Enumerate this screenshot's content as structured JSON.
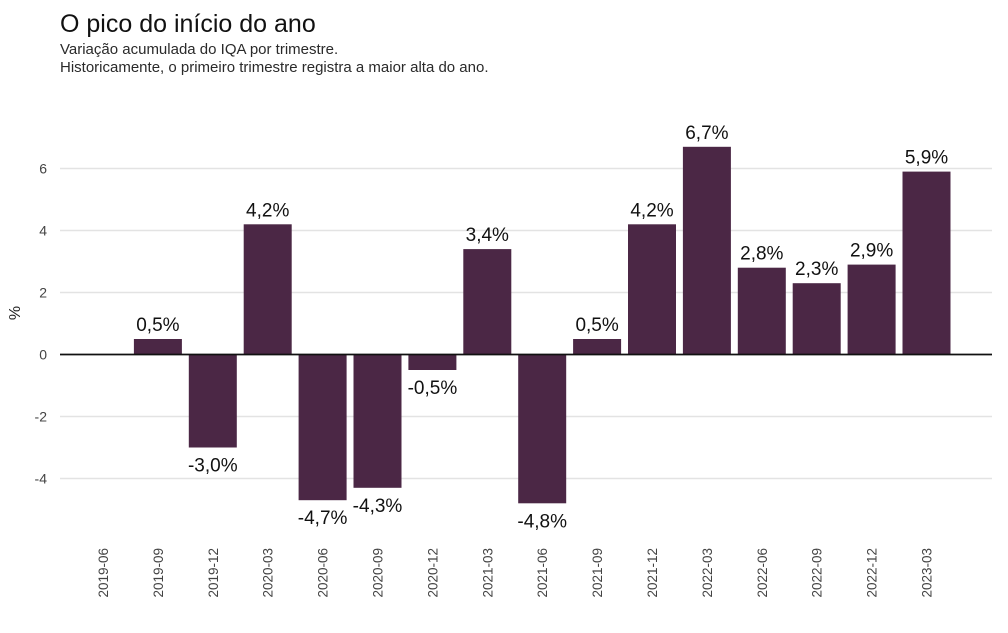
{
  "chart_data": {
    "type": "bar",
    "title": "O pico do início do ano",
    "subtitle": [
      "Variação acumulada do IQA por trimestre.",
      "Historicamente, o primeiro trimestre registra a maior alta do ano."
    ],
    "xlabel": "",
    "ylabel": "%",
    "ylim": [
      -5.8,
      7.3
    ],
    "yticks": [
      -4,
      -2,
      0,
      2,
      4,
      6
    ],
    "grid": true,
    "bar_color": "#4b2745",
    "categories": [
      "2019-06",
      "2019-09",
      "2019-12",
      "2020-03",
      "2020-06",
      "2020-09",
      "2020-12",
      "2021-03",
      "2021-06",
      "2021-09",
      "2021-12",
      "2022-03",
      "2022-06",
      "2022-09",
      "2022-12",
      "2023-03"
    ],
    "values": [
      null,
      0.5,
      -3.0,
      4.2,
      -4.7,
      -4.3,
      -0.5,
      3.4,
      -4.8,
      0.5,
      4.2,
      6.7,
      2.8,
      2.3,
      2.9,
      5.9
    ],
    "labels": [
      "",
      "0,5%",
      "-3,0%",
      "4,2%",
      "-4,7%",
      "-4,3%",
      "-0,5%",
      "3,4%",
      "-4,8%",
      "0,5%",
      "4,2%",
      "6,7%",
      "2,8%",
      "2,3%",
      "2,9%",
      "5,9%"
    ]
  }
}
